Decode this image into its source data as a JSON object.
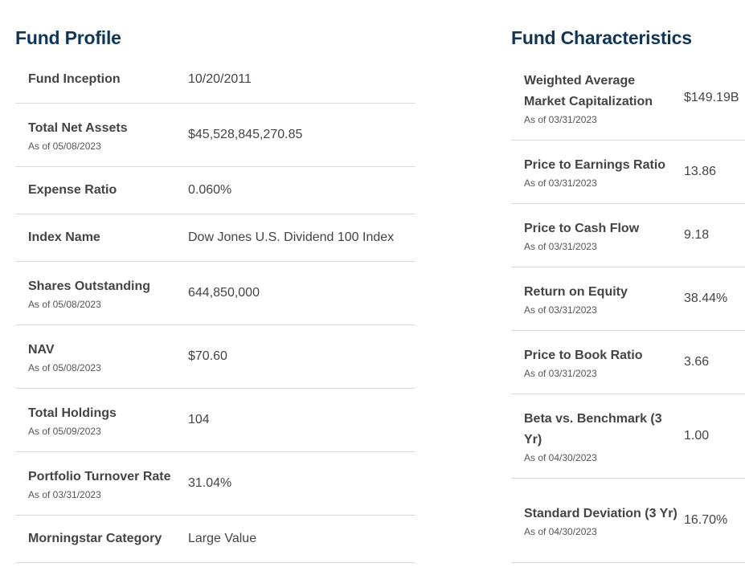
{
  "fund_profile": {
    "title": "Fund Profile",
    "rows": [
      {
        "label": "Fund Inception",
        "as_of": "",
        "value": "10/20/2011"
      },
      {
        "label": "Total Net Assets",
        "as_of": "As of 05/08/2023",
        "value": "$45,528,845,270.85"
      },
      {
        "label": "Expense Ratio",
        "as_of": "",
        "value": "0.060%"
      },
      {
        "label": "Index Name",
        "as_of": "",
        "value": "Dow Jones U.S. Dividend 100 Index"
      },
      {
        "label": "Shares Outstanding",
        "as_of": "As of 05/08/2023",
        "value": "644,850,000"
      },
      {
        "label": "NAV",
        "as_of": "As of 05/08/2023",
        "value": "$70.60"
      },
      {
        "label": "Total Holdings",
        "as_of": "As of 05/09/2023",
        "value": "104"
      },
      {
        "label": "Portfolio Turnover Rate",
        "as_of": "As of 03/31/2023",
        "value": "31.04%"
      },
      {
        "label": "Morningstar Category",
        "as_of": "",
        "value": "Large Value"
      }
    ]
  },
  "fund_characteristics": {
    "title": "Fund Characteristics",
    "rows": [
      {
        "label": "Weighted Average Market Capitalization",
        "as_of": "As of 03/31/2023",
        "value": "$149.19B"
      },
      {
        "label": "Price to Earnings Ratio",
        "as_of": "As of 03/31/2023",
        "value": "13.86"
      },
      {
        "label": "Price to Cash Flow",
        "as_of": "As of 03/31/2023",
        "value": "9.18"
      },
      {
        "label": "Return on Equity",
        "as_of": "As of 03/31/2023",
        "value": "38.44%"
      },
      {
        "label": "Price to Book Ratio",
        "as_of": "As of 03/31/2023",
        "value": "3.66"
      },
      {
        "label": "Beta vs. Benchmark (3 Yr)",
        "as_of": "As of 04/30/2023",
        "value": "1.00"
      },
      {
        "label": "Standard Deviation (3 Yr)",
        "as_of": "As of 04/30/2023",
        "value": "16.70%"
      }
    ]
  }
}
